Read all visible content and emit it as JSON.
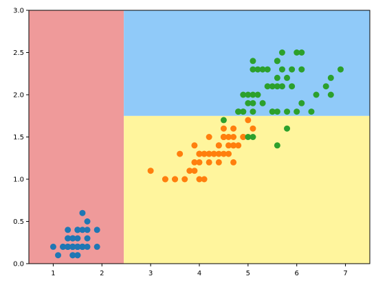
{
  "chart_data": {
    "type": "scatter",
    "title": "",
    "xlabel": "",
    "ylabel": "",
    "xlim": [
      0.5,
      7.5
    ],
    "ylim": [
      0,
      3
    ],
    "x_ticks": [
      1,
      2,
      3,
      4,
      5,
      6,
      7
    ],
    "x_tick_labels": [
      "1",
      "2",
      "3",
      "4",
      "5",
      "6",
      "7"
    ],
    "y_ticks": [
      0,
      0.5,
      1,
      1.5,
      2,
      2.5,
      3
    ],
    "y_tick_labels": [
      "0.0",
      "0.5",
      "1.0",
      "1.5",
      "2.0",
      "2.5",
      "3.0"
    ],
    "grid": false,
    "decision_regions": [
      {
        "x": [
          0.5,
          2.45
        ],
        "y": [
          0,
          3
        ],
        "color": "#ef9a9a"
      },
      {
        "x": [
          2.45,
          7.5
        ],
        "y": [
          0,
          1.75
        ],
        "color": "#fff59d"
      },
      {
        "x": [
          2.45,
          7.5
        ],
        "y": [
          1.75,
          3
        ],
        "color": "#90caf9"
      }
    ],
    "series": [
      {
        "color": "#1f77b4",
        "points": [
          [
            1.4,
            0.2
          ],
          [
            1.4,
            0.2
          ],
          [
            1.3,
            0.2
          ],
          [
            1.5,
            0.2
          ],
          [
            1.4,
            0.2
          ],
          [
            1.7,
            0.4
          ],
          [
            1.4,
            0.3
          ],
          [
            1.5,
            0.2
          ],
          [
            1.4,
            0.2
          ],
          [
            1.5,
            0.1
          ],
          [
            1.5,
            0.2
          ],
          [
            1.6,
            0.2
          ],
          [
            1.4,
            0.1
          ],
          [
            1.1,
            0.1
          ],
          [
            1.2,
            0.2
          ],
          [
            1.5,
            0.4
          ],
          [
            1.3,
            0.4
          ],
          [
            1.4,
            0.3
          ],
          [
            1.7,
            0.3
          ],
          [
            1.5,
            0.3
          ],
          [
            1.7,
            0.2
          ],
          [
            1.5,
            0.4
          ],
          [
            1.0,
            0.2
          ],
          [
            1.7,
            0.5
          ],
          [
            1.9,
            0.2
          ],
          [
            1.6,
            0.2
          ],
          [
            1.6,
            0.4
          ],
          [
            1.5,
            0.2
          ],
          [
            1.4,
            0.2
          ],
          [
            1.6,
            0.2
          ],
          [
            1.6,
            0.2
          ],
          [
            1.5,
            0.4
          ],
          [
            1.5,
            0.1
          ],
          [
            1.4,
            0.2
          ],
          [
            1.5,
            0.2
          ],
          [
            1.2,
            0.2
          ],
          [
            1.3,
            0.2
          ],
          [
            1.4,
            0.1
          ],
          [
            1.3,
            0.2
          ],
          [
            1.5,
            0.2
          ],
          [
            1.3,
            0.3
          ],
          [
            1.3,
            0.3
          ],
          [
            1.3,
            0.2
          ],
          [
            1.6,
            0.6
          ],
          [
            1.9,
            0.4
          ],
          [
            1.4,
            0.3
          ],
          [
            1.6,
            0.2
          ],
          [
            1.4,
            0.2
          ],
          [
            1.5,
            0.2
          ],
          [
            1.4,
            0.2
          ]
        ]
      },
      {
        "color": "#ff7f0e",
        "points": [
          [
            4.7,
            1.4
          ],
          [
            4.5,
            1.5
          ],
          [
            4.9,
            1.5
          ],
          [
            4.0,
            1.3
          ],
          [
            4.6,
            1.5
          ],
          [
            4.5,
            1.3
          ],
          [
            4.7,
            1.6
          ],
          [
            3.3,
            1.0
          ],
          [
            4.6,
            1.3
          ],
          [
            3.9,
            1.4
          ],
          [
            3.5,
            1.0
          ],
          [
            4.2,
            1.5
          ],
          [
            4.0,
            1.0
          ],
          [
            4.7,
            1.4
          ],
          [
            3.6,
            1.3
          ],
          [
            4.4,
            1.4
          ],
          [
            4.5,
            1.5
          ],
          [
            4.1,
            1.0
          ],
          [
            4.5,
            1.5
          ],
          [
            3.9,
            1.1
          ],
          [
            4.8,
            1.8
          ],
          [
            4.0,
            1.3
          ],
          [
            4.9,
            1.5
          ],
          [
            4.7,
            1.2
          ],
          [
            4.3,
            1.3
          ],
          [
            4.4,
            1.4
          ],
          [
            4.8,
            1.4
          ],
          [
            5.0,
            1.7
          ],
          [
            4.5,
            1.5
          ],
          [
            3.5,
            1.0
          ],
          [
            3.8,
            1.1
          ],
          [
            3.7,
            1.0
          ],
          [
            3.9,
            1.2
          ],
          [
            5.1,
            1.6
          ],
          [
            4.5,
            1.5
          ],
          [
            4.5,
            1.6
          ],
          [
            4.7,
            1.5
          ],
          [
            4.4,
            1.3
          ],
          [
            4.1,
            1.3
          ],
          [
            4.0,
            1.3
          ],
          [
            4.4,
            1.2
          ],
          [
            4.6,
            1.4
          ],
          [
            4.0,
            1.2
          ],
          [
            3.3,
            1.0
          ],
          [
            4.2,
            1.3
          ],
          [
            4.2,
            1.2
          ],
          [
            4.2,
            1.3
          ],
          [
            4.3,
            1.3
          ],
          [
            3.0,
            1.1
          ],
          [
            4.1,
            1.3
          ]
        ]
      },
      {
        "color": "#2ca02c",
        "points": [
          [
            6.0,
            2.5
          ],
          [
            5.1,
            1.9
          ],
          [
            5.9,
            2.1
          ],
          [
            5.6,
            1.8
          ],
          [
            5.8,
            2.2
          ],
          [
            6.6,
            2.1
          ],
          [
            4.5,
            1.7
          ],
          [
            6.3,
            1.8
          ],
          [
            5.8,
            1.8
          ],
          [
            6.1,
            2.5
          ],
          [
            5.1,
            2.0
          ],
          [
            5.3,
            1.9
          ],
          [
            5.5,
            2.1
          ],
          [
            5.0,
            2.0
          ],
          [
            5.1,
            2.4
          ],
          [
            5.3,
            2.3
          ],
          [
            5.5,
            1.8
          ],
          [
            6.7,
            2.2
          ],
          [
            6.9,
            2.3
          ],
          [
            5.0,
            1.5
          ],
          [
            5.7,
            2.3
          ],
          [
            4.9,
            2.0
          ],
          [
            6.7,
            2.0
          ],
          [
            4.9,
            1.8
          ],
          [
            5.7,
            2.1
          ],
          [
            6.0,
            1.8
          ],
          [
            4.8,
            1.8
          ],
          [
            4.9,
            1.8
          ],
          [
            5.6,
            2.1
          ],
          [
            5.8,
            1.6
          ],
          [
            6.1,
            1.9
          ],
          [
            6.4,
            2.0
          ],
          [
            5.6,
            2.2
          ],
          [
            5.1,
            1.5
          ],
          [
            5.6,
            1.4
          ],
          [
            6.1,
            2.3
          ],
          [
            5.6,
            2.4
          ],
          [
            5.5,
            1.8
          ],
          [
            4.8,
            1.8
          ],
          [
            5.4,
            2.1
          ],
          [
            5.6,
            2.4
          ],
          [
            5.1,
            2.3
          ],
          [
            5.9,
            2.3
          ],
          [
            5.7,
            2.5
          ],
          [
            5.2,
            2.3
          ],
          [
            5.0,
            1.9
          ],
          [
            5.2,
            2.0
          ],
          [
            5.4,
            2.3
          ],
          [
            5.1,
            1.8
          ]
        ]
      }
    ]
  }
}
